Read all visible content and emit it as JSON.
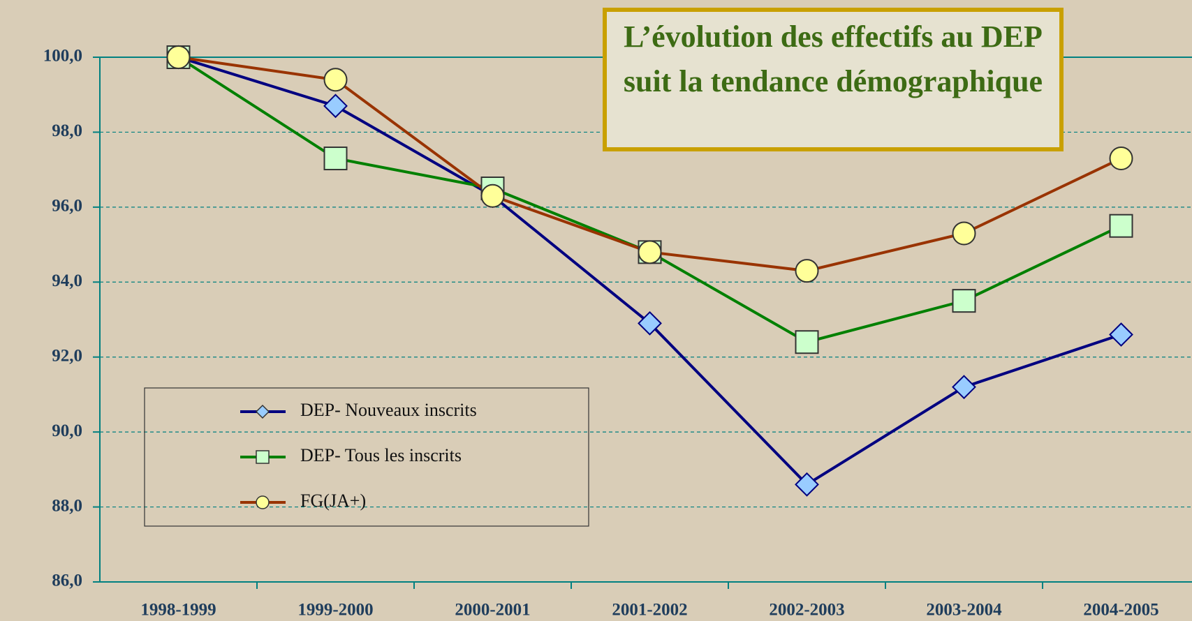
{
  "chart_data": {
    "type": "line",
    "title": "L’évolution des effectifs au DEP suit la tendance démographique",
    "categories": [
      "1998-1999",
      "1999-2000",
      "2000-2001",
      "2001-2002",
      "2002-2003",
      "2003-2004",
      "2004-2005"
    ],
    "series": [
      {
        "name": "DEP- Nouveaux inscrits",
        "color": "#000080",
        "marker": "diamond",
        "marker_fill": "#99ccff",
        "values": [
          100,
          98.7,
          96.3,
          92.9,
          88.6,
          91.2,
          92.6
        ]
      },
      {
        "name": "DEP- Tous les inscrits",
        "color": "#008000",
        "marker": "square",
        "marker_fill": "#ccffcc",
        "values": [
          100,
          97.3,
          96.5,
          94.8,
          92.4,
          93.5,
          95.5
        ]
      },
      {
        "name": "FG(JA+)",
        "color": "#993300",
        "marker": "circle",
        "marker_fill": "#ffff99",
        "values": [
          100,
          99.4,
          96.3,
          94.8,
          94.3,
          95.3,
          97.3
        ]
      }
    ],
    "ylim": [
      86,
      100
    ],
    "yticks": [
      {
        "value": 86,
        "label": "86,0"
      },
      {
        "value": 88,
        "label": "88,0"
      },
      {
        "value": 90,
        "label": "90,0"
      },
      {
        "value": 92,
        "label": "92,0"
      },
      {
        "value": 94,
        "label": "94,0"
      },
      {
        "value": 96,
        "label": "96,0"
      },
      {
        "value": 98,
        "label": "98,0"
      },
      {
        "value": 100,
        "label": "100,0"
      }
    ],
    "grid": true,
    "legend": "lower left"
  }
}
